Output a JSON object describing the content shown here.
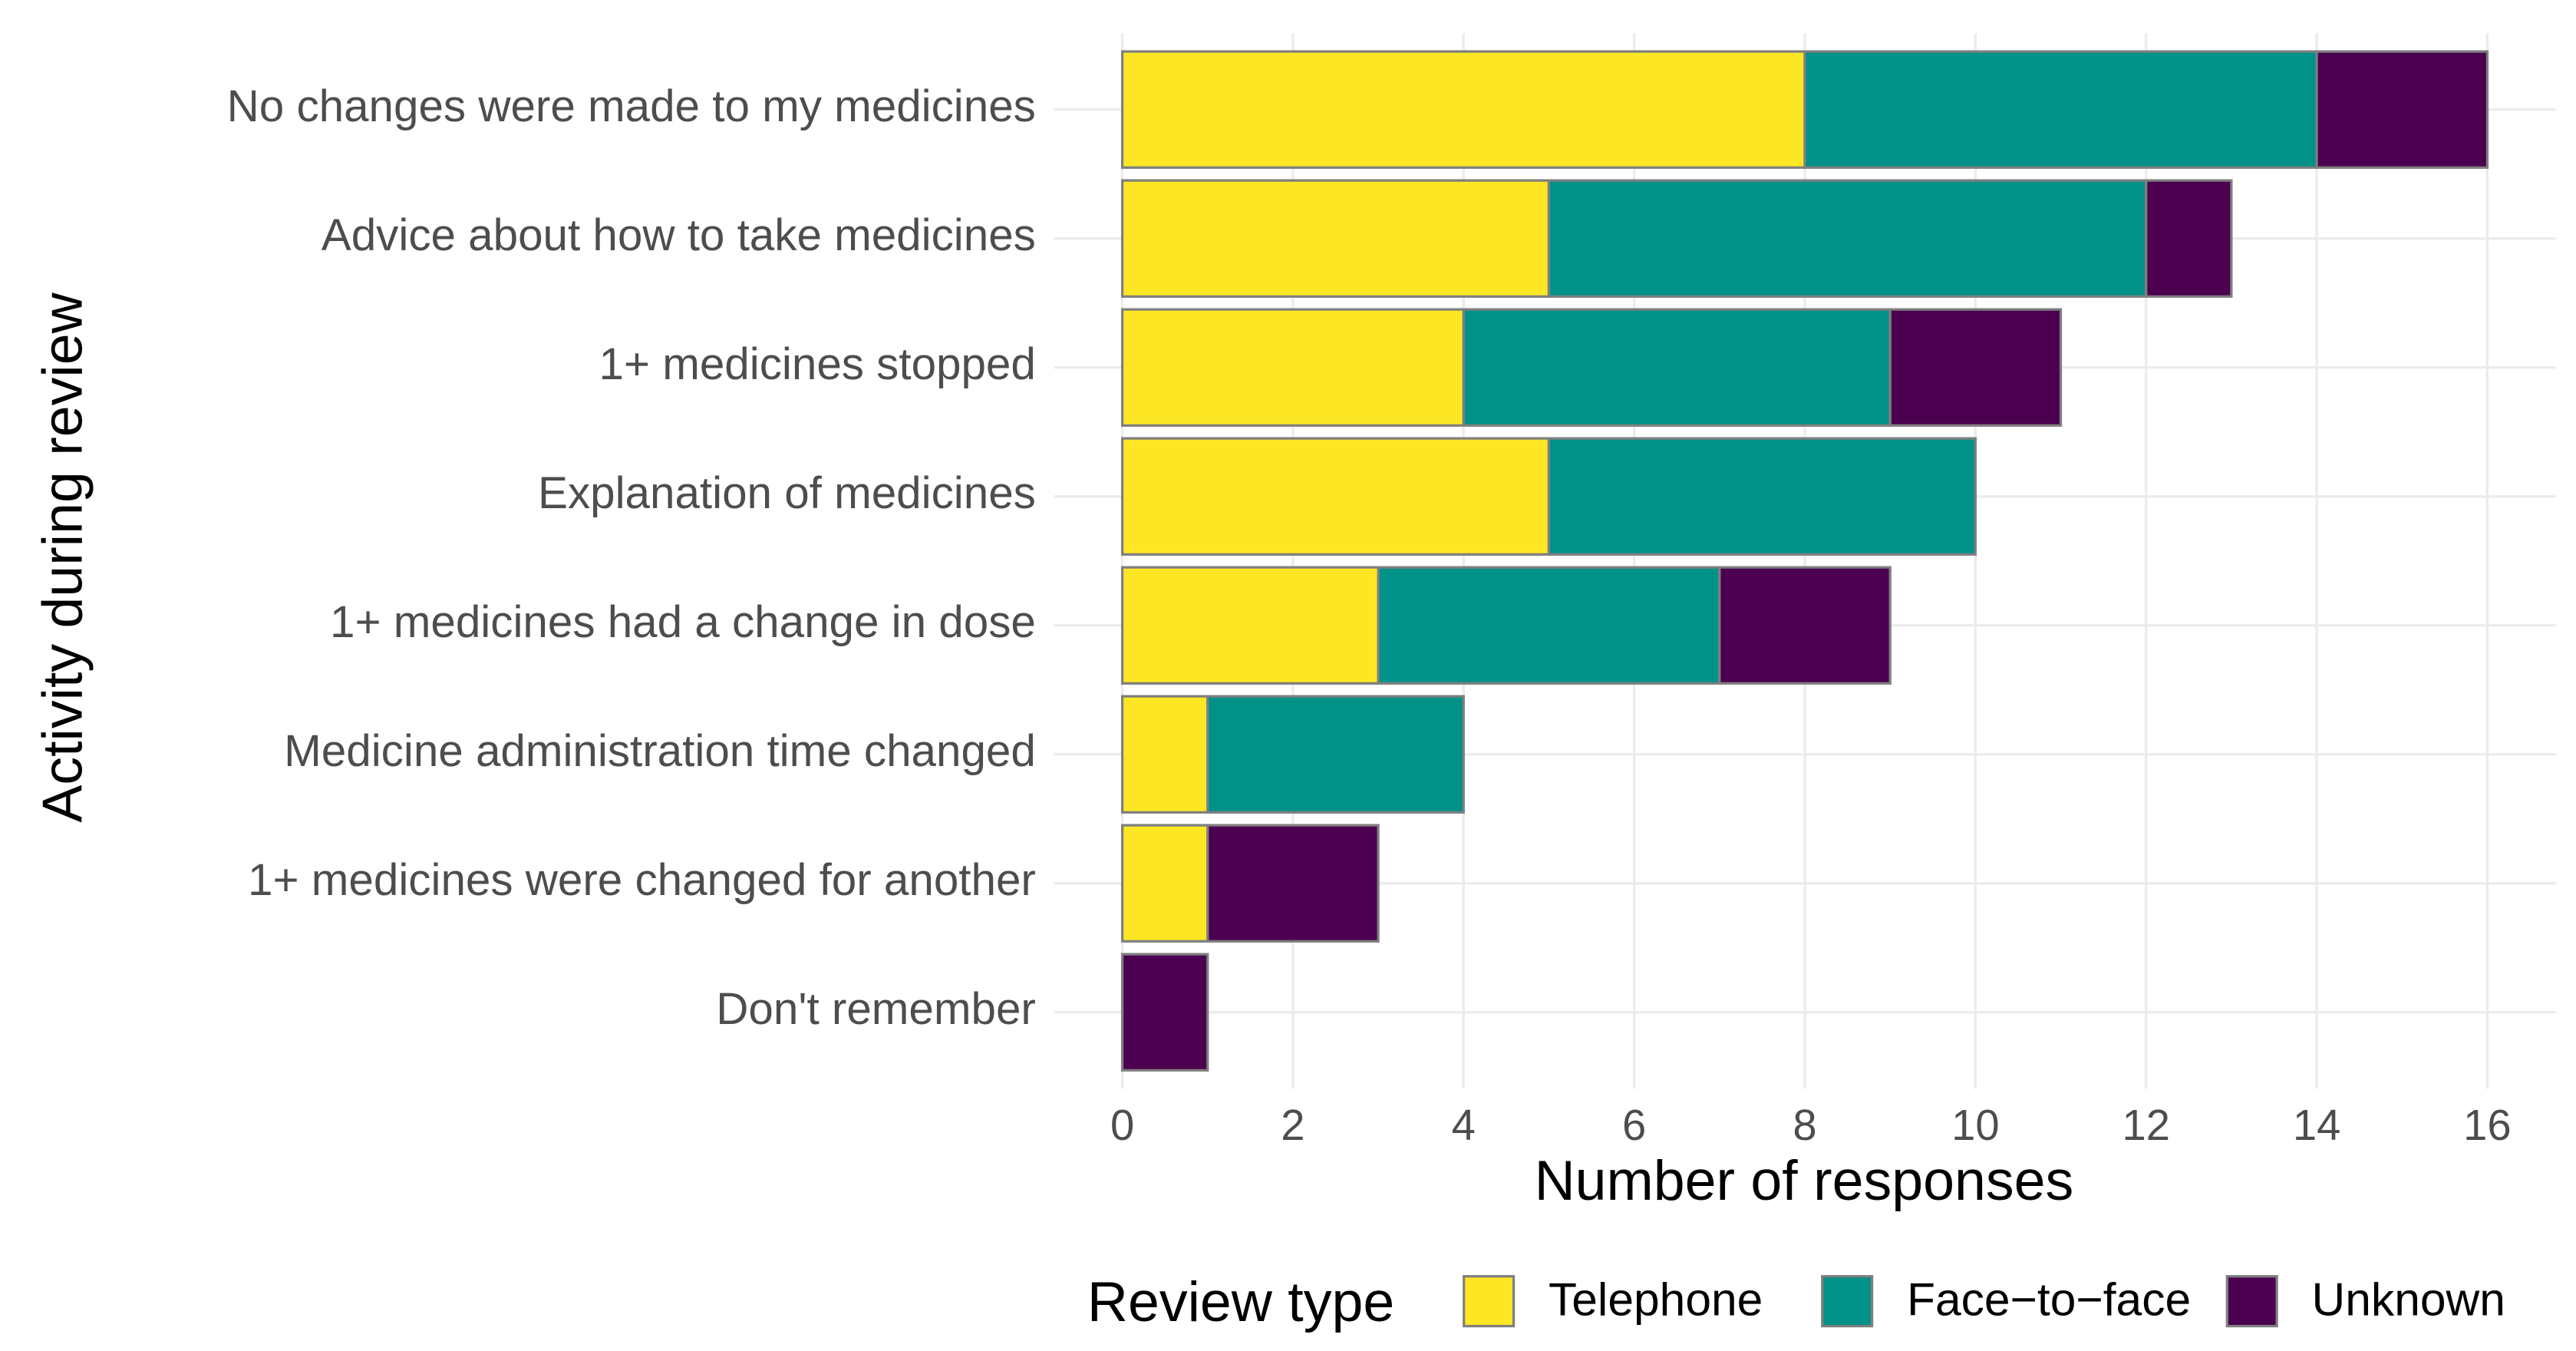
{
  "chart_data": {
    "type": "stacked-hbar",
    "x_label": "Number of responses",
    "y_label": "Activity during review",
    "legend_title": "Review type",
    "legend_position": "bottom",
    "grid": true,
    "categories": [
      "No changes were made to my medicines",
      "Advice about how to take medicines",
      "1+ medicines stopped",
      "Explanation of medicines",
      "1+ medicines had a change in dose",
      "Medicine administration time changed",
      "1+ medicines were changed for another",
      "Don't remember"
    ],
    "series": [
      {
        "name": "Telephone",
        "color": "#fde725",
        "values": [
          8,
          5,
          4,
          5,
          3,
          1,
          1,
          0
        ]
      },
      {
        "name": "Face−to−face",
        "color": "#009189",
        "values": [
          6,
          7,
          5,
          5,
          4,
          3,
          0,
          0
        ]
      },
      {
        "name": "Unknown",
        "color": "#4b0150",
        "values": [
          2,
          1,
          2,
          0,
          2,
          0,
          2,
          1
        ]
      }
    ],
    "xlim": [
      -0.8,
      16.8
    ],
    "xticks": [
      0,
      2,
      4,
      6,
      8,
      10,
      12,
      14,
      16
    ]
  }
}
